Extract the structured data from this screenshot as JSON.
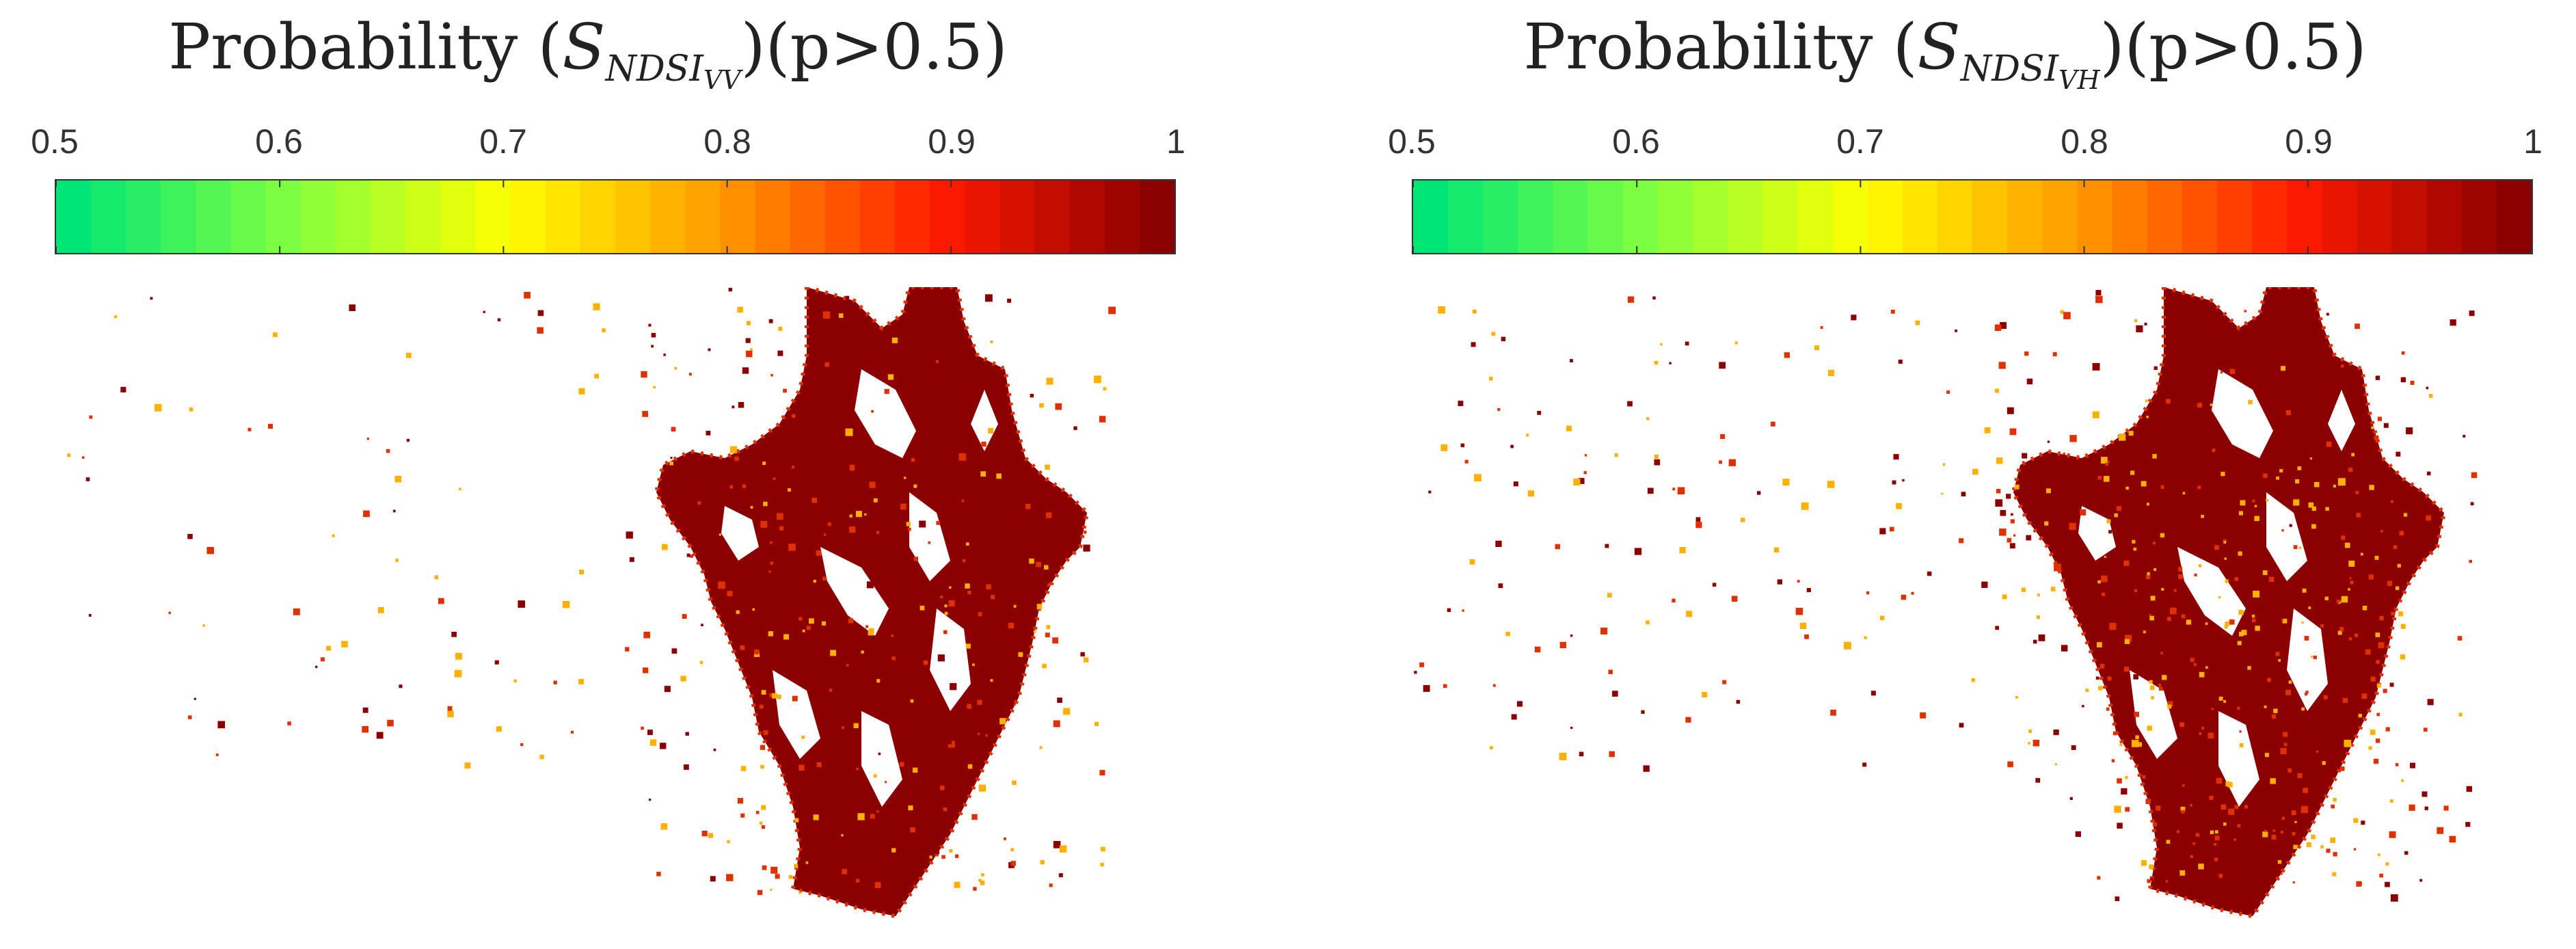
{
  "chart_data": [
    {
      "type": "heatmap",
      "title": {
        "prefix": "Probability (",
        "symbol": "S",
        "subscript": "NDSI",
        "subsubscript": "VV",
        "suffix": ")(p>0.5)"
      },
      "colorbar": {
        "range": [
          0.5,
          1
        ],
        "ticks": [
          "0.5",
          "0.6",
          "0.7",
          "0.8",
          "0.9",
          "1"
        ],
        "tick_values": [
          0.5,
          0.6,
          0.7,
          0.8,
          0.9,
          1.0
        ],
        "levels": 32,
        "colormap": [
          "#00e676",
          "#80ff40",
          "#ffff00",
          "#ff9900",
          "#ff1a00",
          "#8b0000"
        ]
      },
      "dominant_value": 1.0,
      "grid": false,
      "legend": "top"
    },
    {
      "type": "heatmap",
      "title": {
        "prefix": "Probability (",
        "symbol": "S",
        "subscript": "NDSI",
        "subsubscript": "VH",
        "suffix": ")(p>0.5)"
      },
      "colorbar": {
        "range": [
          0.5,
          1
        ],
        "ticks": [
          "0.5",
          "0.6",
          "0.7",
          "0.8",
          "0.9",
          "1"
        ],
        "tick_values": [
          0.5,
          0.6,
          0.7,
          0.8,
          0.9,
          1.0
        ],
        "levels": 32,
        "colormap": [
          "#00e676",
          "#80ff40",
          "#ffff00",
          "#ff9900",
          "#ff1a00",
          "#8b0000"
        ]
      },
      "dominant_value": 1.0,
      "grid": false,
      "legend": "top"
    }
  ],
  "colors": {
    "map_main": "#8b0000",
    "map_edge_mid": "#e03000",
    "map_edge_light": "#ffb000"
  }
}
